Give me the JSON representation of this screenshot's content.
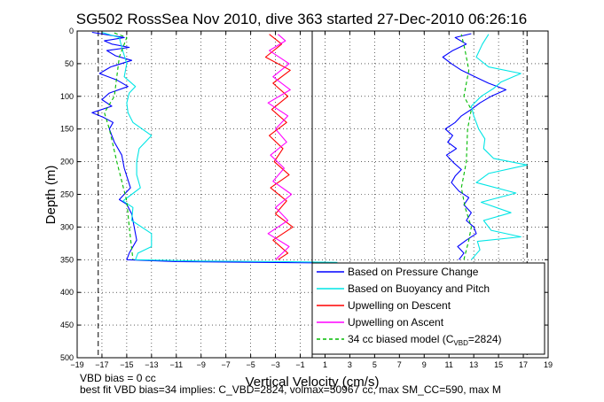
{
  "chart_data": {
    "type": "line",
    "title": "SG502 RossSea Nov 2010, dive 363 started 27-Dec-2010 06:26:16",
    "xlabel": "Vertical Velocity (cm/s)",
    "ylabel": "Depth (m)",
    "xlim": [
      -19,
      19
    ],
    "ylim": [
      500,
      0
    ],
    "x_ticks": [
      -19,
      -17,
      -15,
      -13,
      -11,
      -9,
      -7,
      -5,
      -3,
      -1,
      1,
      3,
      5,
      7,
      9,
      11,
      13,
      15,
      17,
      19
    ],
    "y_ticks": [
      0,
      50,
      100,
      150,
      200,
      250,
      300,
      350,
      400,
      450,
      500
    ],
    "grid": true,
    "legend_position": "bottom-right",
    "legend": [
      {
        "label": "Based on Pressure Change",
        "color": "#0000ff",
        "dash": "solid"
      },
      {
        "label": "Based on Buoyancy and Pitch",
        "color": "#00e5e5",
        "dash": "solid"
      },
      {
        "label": "Upwelling on Descent",
        "color": "#ff0000",
        "dash": "solid"
      },
      {
        "label": "Upwelling on Ascent",
        "color": "#ff00ff",
        "dash": "solid"
      },
      {
        "label_prefix": "34 cc biased model (C",
        "label_sub": "VBD",
        "label_suffix": "=2824)",
        "color": "#00bb00",
        "dash": "dashed"
      }
    ],
    "reference_lines": [
      -17.3,
      17.3
    ],
    "series": [
      {
        "key": "pressure_desc",
        "color": "#0000ff",
        "dash": "solid",
        "points": [
          [
            -17.8,
            2
          ],
          [
            -16.5,
            6
          ],
          [
            -15.2,
            10
          ],
          [
            -16.8,
            15
          ],
          [
            -16.2,
            20
          ],
          [
            -14.8,
            25
          ],
          [
            -16.6,
            30
          ],
          [
            -15.9,
            38
          ],
          [
            -14.6,
            45
          ],
          [
            -16.3,
            55
          ],
          [
            -17.2,
            65
          ],
          [
            -15.8,
            75
          ],
          [
            -14.9,
            85
          ],
          [
            -16.4,
            95
          ],
          [
            -17.0,
            105
          ],
          [
            -16.2,
            115
          ],
          [
            -17.8,
            125
          ],
          [
            -16.9,
            132
          ],
          [
            -16.1,
            140
          ],
          [
            -16.4,
            150
          ],
          [
            -16.0,
            170
          ],
          [
            -15.4,
            190
          ],
          [
            -15.2,
            210
          ],
          [
            -14.7,
            240
          ],
          [
            -15.6,
            258
          ],
          [
            -15.0,
            265
          ],
          [
            -14.6,
            280
          ],
          [
            -14.4,
            300
          ],
          [
            -14.2,
            320
          ],
          [
            -14.8,
            340
          ],
          [
            -15.0,
            350
          ],
          [
            -11.0,
            353
          ],
          [
            -4.0,
            354
          ],
          [
            1.0,
            355
          ],
          [
            3.0,
            357
          ]
        ]
      },
      {
        "key": "buoyancy_desc",
        "color": "#00e5e5",
        "dash": "solid",
        "points": [
          [
            -17.0,
            2
          ],
          [
            -15.6,
            10
          ],
          [
            -15.4,
            25
          ],
          [
            -15.0,
            50
          ],
          [
            -15.2,
            70
          ],
          [
            -14.3,
            85
          ],
          [
            -14.8,
            95
          ],
          [
            -15.0,
            110
          ],
          [
            -14.9,
            125
          ],
          [
            -14.5,
            140
          ],
          [
            -13.0,
            160
          ],
          [
            -14.0,
            180
          ],
          [
            -14.2,
            200
          ],
          [
            -14.2,
            220
          ],
          [
            -13.9,
            240
          ],
          [
            -14.6,
            250
          ],
          [
            -15.3,
            260
          ],
          [
            -14.5,
            270
          ],
          [
            -14.6,
            290
          ],
          [
            -13.0,
            310
          ],
          [
            -13.0,
            330
          ],
          [
            -14.1,
            340
          ],
          [
            -14.3,
            350
          ],
          [
            -9.0,
            352
          ],
          [
            -2.0,
            353
          ],
          [
            2.0,
            354
          ]
        ]
      },
      {
        "key": "model_desc",
        "color": "#00bb00",
        "dash": "dashed",
        "points": [
          [
            -16.0,
            3
          ],
          [
            -15.0,
            10
          ],
          [
            -15.6,
            40
          ],
          [
            -15.8,
            70
          ],
          [
            -16.0,
            100
          ],
          [
            -16.8,
            125
          ],
          [
            -16.4,
            150
          ],
          [
            -15.8,
            200
          ],
          [
            -15.0,
            260
          ],
          [
            -14.8,
            300
          ],
          [
            -14.5,
            350
          ]
        ]
      },
      {
        "key": "upwelling_desc",
        "color": "#ff0000",
        "dash": "solid",
        "points": [
          [
            -3.5,
            5
          ],
          [
            -2.5,
            20
          ],
          [
            -3.8,
            40
          ],
          [
            -1.8,
            60
          ],
          [
            -3.2,
            80
          ],
          [
            -2.0,
            100
          ],
          [
            -3.3,
            120
          ],
          [
            -2.1,
            140
          ],
          [
            -3.5,
            160
          ],
          [
            -2.4,
            180
          ],
          [
            -3.1,
            200
          ],
          [
            -1.9,
            220
          ],
          [
            -3.4,
            240
          ],
          [
            -2.1,
            260
          ],
          [
            -3.0,
            280
          ],
          [
            -1.6,
            300
          ],
          [
            -3.2,
            320
          ],
          [
            -2.0,
            340
          ],
          [
            -2.8,
            350
          ]
        ]
      },
      {
        "key": "upwelling_asc",
        "color": "#ff00ff",
        "dash": "solid",
        "points": [
          [
            -3.0,
            350
          ],
          [
            -1.9,
            330
          ],
          [
            -3.6,
            310
          ],
          [
            -2.0,
            290
          ],
          [
            -3.0,
            270
          ],
          [
            -1.7,
            250
          ],
          [
            -3.2,
            230
          ],
          [
            -2.3,
            210
          ],
          [
            -3.4,
            190
          ],
          [
            -2.1,
            170
          ],
          [
            -3.0,
            150
          ],
          [
            -2.0,
            130
          ],
          [
            -3.6,
            110
          ],
          [
            -1.8,
            90
          ],
          [
            -3.2,
            70
          ],
          [
            -1.9,
            50
          ],
          [
            -3.5,
            30
          ],
          [
            -2.2,
            15
          ],
          [
            -2.8,
            5
          ]
        ]
      },
      {
        "key": "pressure_asc",
        "color": "#0000ff",
        "dash": "solid",
        "points": [
          [
            11.8,
            350
          ],
          [
            12.2,
            340
          ],
          [
            11.7,
            330
          ],
          [
            12.4,
            320
          ],
          [
            13.2,
            310
          ],
          [
            13.0,
            300
          ],
          [
            12.4,
            290
          ],
          [
            12.8,
            278
          ],
          [
            12.2,
            266
          ],
          [
            12.6,
            255
          ],
          [
            11.8,
            245
          ],
          [
            11.2,
            232
          ],
          [
            11.5,
            222
          ],
          [
            12.0,
            212
          ],
          [
            11.4,
            202
          ],
          [
            10.8,
            190
          ],
          [
            11.6,
            180
          ],
          [
            10.9,
            170
          ],
          [
            11.3,
            160
          ],
          [
            10.7,
            150
          ],
          [
            11.5,
            140
          ],
          [
            12.0,
            130
          ],
          [
            12.8,
            120
          ],
          [
            13.5,
            110
          ],
          [
            14.4,
            100
          ],
          [
            15.6,
            90
          ],
          [
            14.2,
            80
          ],
          [
            13.1,
            70
          ],
          [
            12.0,
            60
          ],
          [
            11.2,
            50
          ],
          [
            10.5,
            40
          ],
          [
            11.3,
            30
          ],
          [
            12.4,
            20
          ],
          [
            11.5,
            10
          ],
          [
            12.8,
            4
          ]
        ]
      },
      {
        "key": "buoyancy_asc",
        "color": "#00e5e5",
        "dash": "solid",
        "points": [
          [
            12.8,
            350
          ],
          [
            13.5,
            335
          ],
          [
            13.3,
            322
          ],
          [
            16.8,
            315
          ],
          [
            14.4,
            305
          ],
          [
            13.8,
            290
          ],
          [
            16.0,
            278
          ],
          [
            13.6,
            262
          ],
          [
            16.4,
            248
          ],
          [
            13.2,
            232
          ],
          [
            14.2,
            218
          ],
          [
            17.3,
            205
          ],
          [
            14.6,
            195
          ],
          [
            13.8,
            180
          ],
          [
            13.9,
            165
          ],
          [
            13.4,
            150
          ],
          [
            13.0,
            130
          ],
          [
            12.8,
            115
          ],
          [
            13.6,
            100
          ],
          [
            14.6,
            88
          ],
          [
            15.2,
            78
          ],
          [
            16.8,
            65
          ],
          [
            14.2,
            55
          ],
          [
            13.2,
            40
          ],
          [
            13.7,
            20
          ],
          [
            14.2,
            5
          ]
        ]
      },
      {
        "key": "model_asc",
        "color": "#00bb00",
        "dash": "dashed",
        "points": [
          [
            12.2,
            350
          ],
          [
            12.6,
            320
          ],
          [
            12.8,
            300
          ],
          [
            12.3,
            270
          ],
          [
            12.0,
            240
          ],
          [
            12.4,
            200
          ],
          [
            12.5,
            150
          ],
          [
            12.8,
            120
          ],
          [
            12.2,
            100
          ],
          [
            12.6,
            60
          ],
          [
            12.3,
            30
          ],
          [
            12.0,
            5
          ]
        ]
      }
    ]
  },
  "notes": {
    "vbd_bias": "VBD bias = 0 cc",
    "best_fit": "best fit VBD bias=34 implies: C_VBD=2824, volmax=50967 cc, max SM_CC=590, max M"
  }
}
